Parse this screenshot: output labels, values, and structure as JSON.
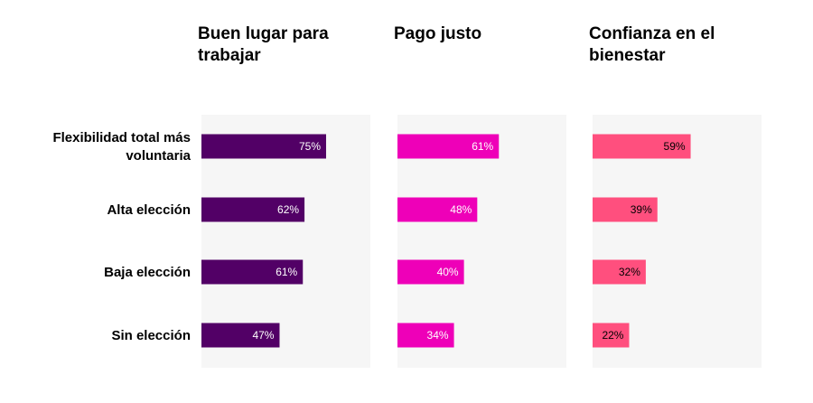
{
  "chart_data": {
    "type": "bar",
    "orientation": "horizontal",
    "categories": [
      [
        "Flexibilidad total más",
        "voluntaria"
      ],
      [
        "Alta elección"
      ],
      [
        "Baja elección"
      ],
      [
        "Sin elección"
      ]
    ],
    "xlim": [
      0,
      100
    ],
    "grid": false,
    "legend": "none",
    "panels": [
      {
        "title": [
          "Buen lugar para",
          "trabajar"
        ],
        "values": [
          75,
          62,
          61,
          47
        ],
        "labels": [
          "75%",
          "62%",
          "61%",
          "47%"
        ],
        "color": "#520066",
        "label_color": "#ffffff"
      },
      {
        "title": [
          "Pago justo"
        ],
        "values": [
          61,
          48,
          40,
          34
        ],
        "labels": [
          "61%",
          "48%",
          "40%",
          "34%"
        ],
        "color": "#ee00b8",
        "label_color": "#ffffff"
      },
      {
        "title": [
          "Confianza en el",
          "bienestar"
        ],
        "values": [
          59,
          39,
          32,
          22
        ],
        "labels": [
          "59%",
          "39%",
          "32%",
          "22%"
        ],
        "color": "#ff4f7e",
        "label_color": "#000000"
      }
    ],
    "panel_background": "#f6f6f6"
  }
}
